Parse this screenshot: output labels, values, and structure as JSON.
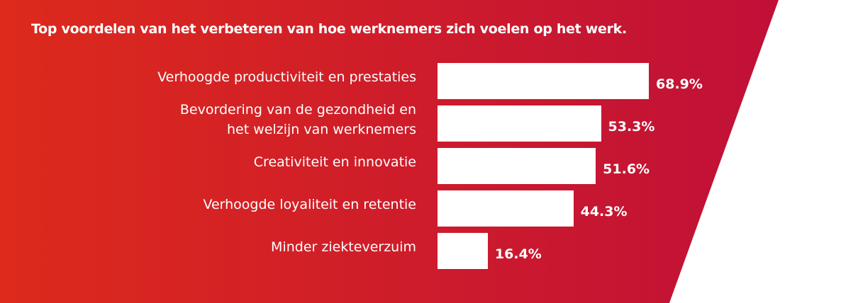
{
  "colors": {
    "gradient_start": "#dd2a1c",
    "gradient_end": "#c01038",
    "bar": "#ffffff",
    "text": "#ffffff",
    "background": "#ffffff"
  },
  "chart_data": {
    "type": "bar",
    "orientation": "horizontal",
    "title": "Top voordelen van het verbeteren van hoe werknemers zich voelen op het werk.",
    "categories": [
      [
        "Verhoogde productiviteit en prestaties"
      ],
      [
        "Bevordering van de gezondheid en",
        "het welzijn van werknemers"
      ],
      [
        "Creativiteit en innovatie"
      ],
      [
        "Verhoogde loyaliteit en retentie"
      ],
      [
        "Minder ziekteverzuim"
      ]
    ],
    "values": [
      68.9,
      53.3,
      51.6,
      44.3,
      16.4
    ],
    "value_labels": [
      "68.9%",
      "53.3%",
      "51.6%",
      "44.3%",
      "16.4%"
    ],
    "unit": "%",
    "grid": false,
    "legend": "none"
  }
}
